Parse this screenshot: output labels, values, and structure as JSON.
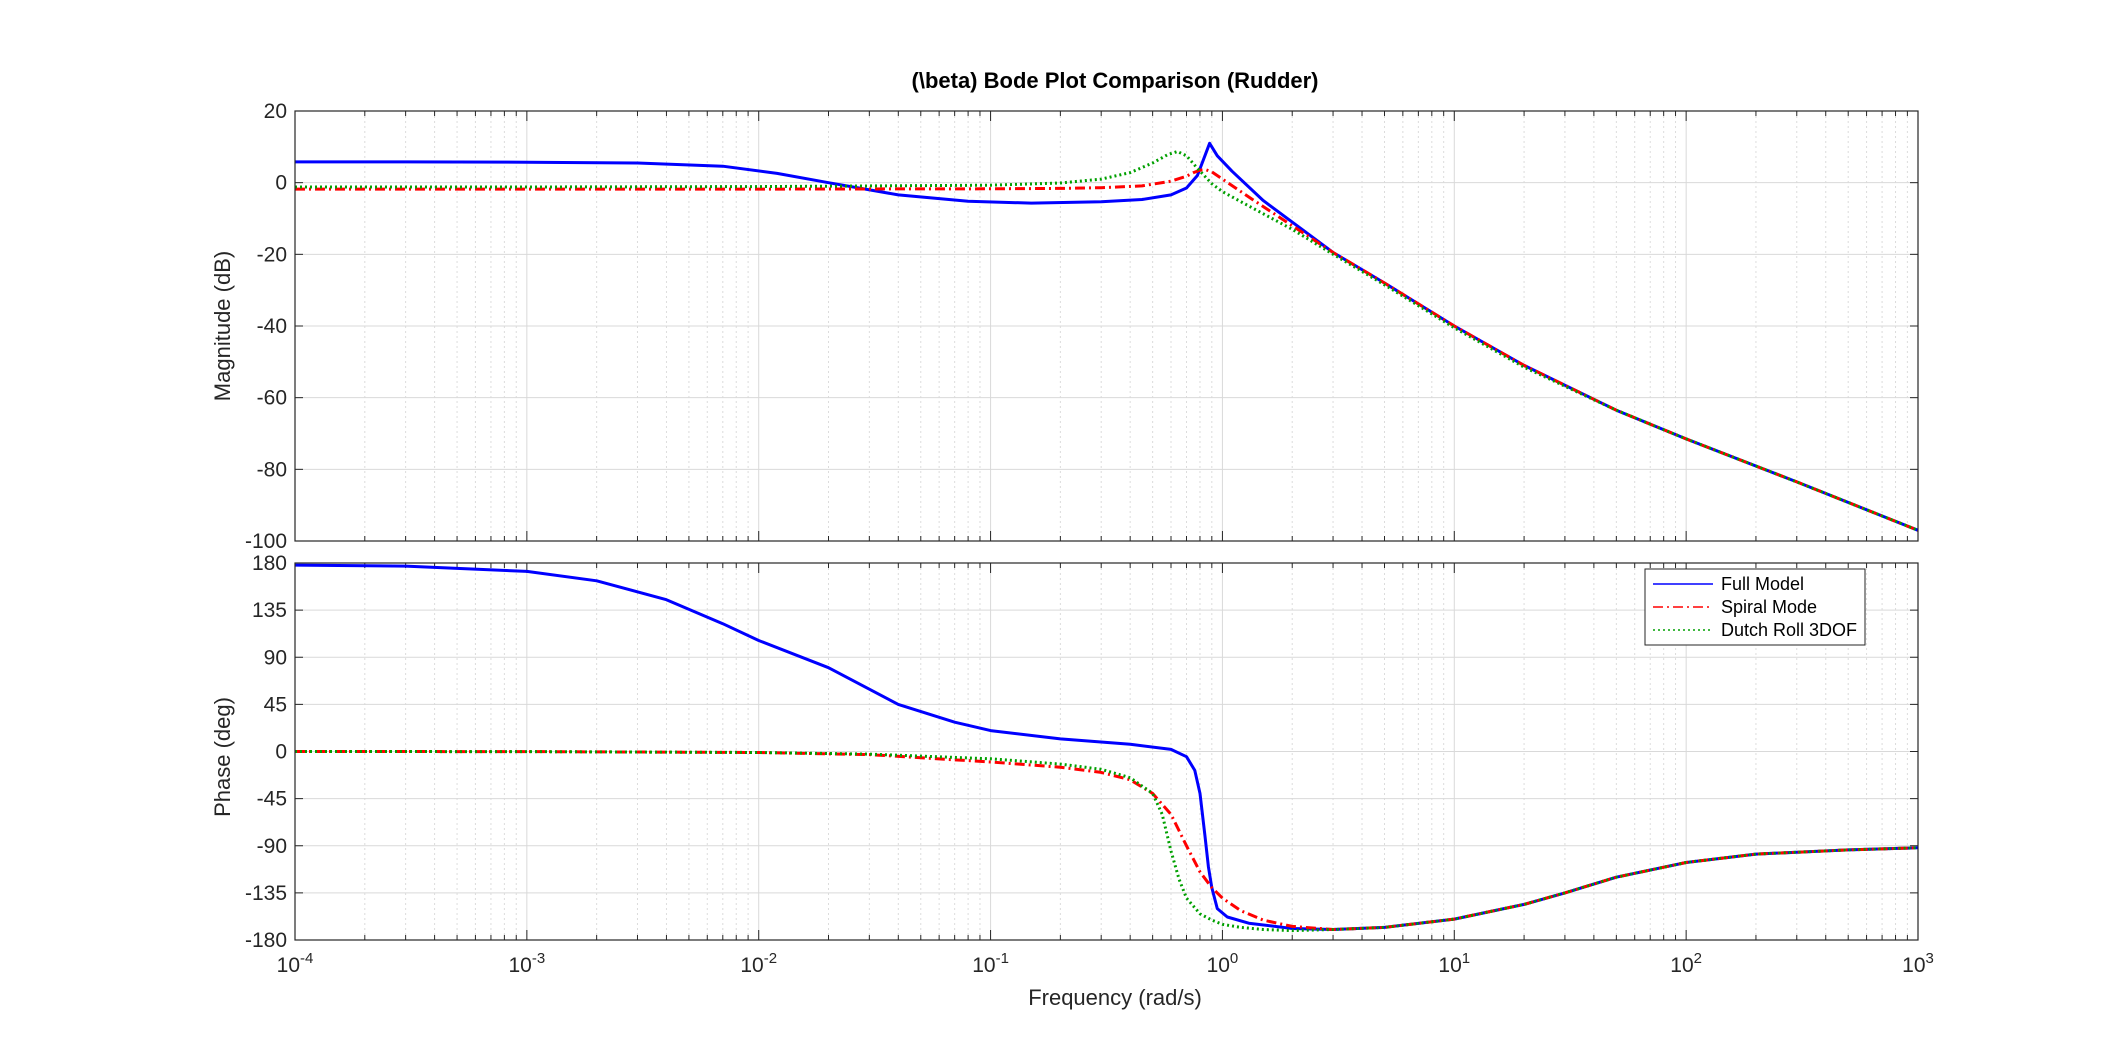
{
  "chart_data": {
    "type": "line",
    "title": "(\\beta) Bode Plot Comparison (Rudder)",
    "xlabel": "Frequency  (rad/s)",
    "x_scale": "log",
    "xlim": [
      0.0001,
      1000
    ],
    "x_ticks": [
      {
        "base": "10",
        "exp": "-4"
      },
      {
        "base": "10",
        "exp": "-3"
      },
      {
        "base": "10",
        "exp": "-2"
      },
      {
        "base": "10",
        "exp": "-1"
      },
      {
        "base": "10",
        "exp": "0"
      },
      {
        "base": "10",
        "exp": "1"
      },
      {
        "base": "10",
        "exp": "2"
      },
      {
        "base": "10",
        "exp": "3"
      }
    ],
    "grid": true,
    "legend_position": "top-right of phase panel",
    "legend": [
      "Full Model",
      "Spiral Mode",
      "Dutch Roll 3DOF"
    ],
    "colors": {
      "Full Model": "#0000ff",
      "Spiral Mode": "#ff0000",
      "Dutch Roll 3DOF": "#00a000"
    },
    "panels": [
      {
        "ylabel": "Magnitude (dB)",
        "ylim": [
          -100,
          20
        ],
        "y_ticks": [
          "20",
          "0",
          "-20",
          "-40",
          "-60",
          "-80",
          "-100"
        ],
        "series": [
          {
            "name": "Full Model",
            "style": "solid",
            "x": [
              0.0001,
              0.0003,
              0.001,
              0.003,
              0.007,
              0.012,
              0.02,
              0.04,
              0.08,
              0.15,
              0.3,
              0.45,
              0.6,
              0.7,
              0.78,
              0.84,
              0.88,
              0.95,
              1.1,
              1.5,
              2,
              3,
              5,
              10,
              20,
              50,
              100,
              300,
              1000
            ],
            "y": [
              5.8,
              5.8,
              5.7,
              5.5,
              4.6,
              2.6,
              0,
              -3.4,
              -5.2,
              -5.7,
              -5.3,
              -4.7,
              -3.4,
              -1.5,
              2,
              7.5,
              11,
              7.5,
              3.2,
              -5,
              -11,
              -19.5,
              -28,
              -40,
              -51,
              -63.5,
              -71.5,
              -83.5,
              -97
            ]
          },
          {
            "name": "Spiral Mode",
            "style": "dashdot",
            "x": [
              0.0001,
              0.001,
              0.01,
              0.1,
              0.2,
              0.3,
              0.45,
              0.6,
              0.7,
              0.75,
              0.8,
              0.85,
              0.9,
              1,
              1.3,
              2,
              3,
              5,
              10,
              20,
              50,
              100,
              300,
              1000
            ],
            "y": [
              -1.8,
              -1.8,
              -1.8,
              -1.7,
              -1.6,
              -1.4,
              -0.9,
              0.4,
              1.8,
              2.8,
              3.5,
              3.6,
              3,
              1,
              -4,
              -12,
              -19.5,
              -28,
              -40,
              -51,
              -63.5,
              -71.5,
              -83.5,
              -97
            ]
          },
          {
            "name": "Dutch Roll 3DOF",
            "style": "dotted",
            "x": [
              0.0001,
              0.001,
              0.01,
              0.1,
              0.2,
              0.3,
              0.4,
              0.5,
              0.58,
              0.64,
              0.7,
              0.78,
              0.9,
              1,
              1.3,
              2,
              3,
              5,
              10,
              20,
              50,
              100,
              300,
              1000
            ],
            "y": [
              -1.2,
              -1.2,
              -1.1,
              -0.7,
              -0.1,
              1,
              2.8,
              5.5,
              7.8,
              8.7,
              7.5,
              4,
              -0.3,
              -2.5,
              -6.5,
              -13,
              -20,
              -28.5,
              -40.5,
              -51.5,
              -63.5,
              -71.5,
              -83.5,
              -97
            ]
          }
        ]
      },
      {
        "ylabel": "Phase (deg)",
        "ylim": [
          -180,
          180
        ],
        "y_ticks": [
          "180",
          "135",
          "90",
          "45",
          "0",
          "-45",
          "-90",
          "-135",
          "-180"
        ],
        "series": [
          {
            "name": "Full Model",
            "style": "solid",
            "x": [
              0.0001,
              0.0003,
              0.001,
              0.002,
              0.004,
              0.007,
              0.01,
              0.02,
              0.04,
              0.07,
              0.1,
              0.2,
              0.4,
              0.6,
              0.7,
              0.76,
              0.8,
              0.84,
              0.87,
              0.9,
              0.95,
              1.05,
              1.3,
              2,
              3,
              5,
              10,
              20,
              30,
              50,
              100,
              200,
              500,
              1000
            ],
            "y": [
              178,
              177,
              172,
              163,
              145,
              122,
              106,
              80,
              45,
              28,
              20,
              12,
              7,
              2,
              -5,
              -18,
              -40,
              -80,
              -110,
              -130,
              -150,
              -158,
              -164,
              -169,
              -170,
              -168,
              -160,
              -146,
              -135,
              -120,
              -106,
              -98,
              -94,
              -92
            ]
          },
          {
            "name": "Spiral Mode",
            "style": "dashdot",
            "x": [
              0.0001,
              0.001,
              0.01,
              0.03,
              0.1,
              0.2,
              0.3,
              0.4,
              0.5,
              0.6,
              0.7,
              0.8,
              0.9,
              1,
              1.2,
              1.5,
              2,
              3,
              5,
              10,
              20,
              30,
              50,
              100,
              200,
              500,
              1000
            ],
            "y": [
              0,
              -0.1,
              -1,
              -3,
              -10,
              -15,
              -20,
              -27,
              -40,
              -60,
              -90,
              -115,
              -130,
              -140,
              -152,
              -161,
              -167,
              -170,
              -168,
              -160,
              -146,
              -135,
              -120,
              -106,
              -98,
              -94,
              -92
            ]
          },
          {
            "name": "Dutch Roll 3DOF",
            "style": "dotted",
            "x": [
              0.0001,
              0.001,
              0.01,
              0.03,
              0.1,
              0.2,
              0.3,
              0.4,
              0.5,
              0.55,
              0.6,
              0.65,
              0.7,
              0.8,
              0.9,
              1,
              1.2,
              1.5,
              2,
              3,
              5,
              10,
              20,
              30,
              50,
              100,
              200,
              500,
              1000
            ],
            "y": [
              0,
              -0.1,
              -1,
              -2.5,
              -7,
              -12,
              -17,
              -25,
              -40,
              -60,
              -95,
              -122,
              -140,
              -155,
              -161,
              -165,
              -168,
              -170,
              -171,
              -170,
              -168,
              -160,
              -146,
              -135,
              -120,
              -106,
              -98,
              -94,
              -92
            ]
          }
        ]
      }
    ]
  }
}
